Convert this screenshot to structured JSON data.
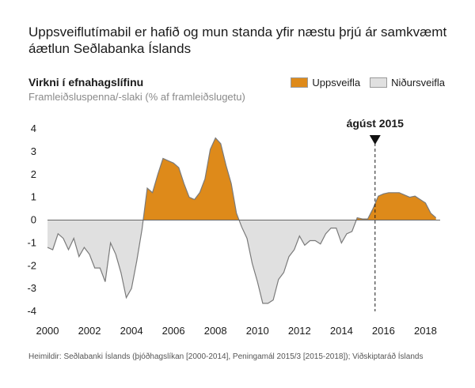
{
  "headline": "Uppsveiflutímabil er hafið og mun standa yfir næstu þrjú ár samkvæmt áætlun Seðlabanka Íslands",
  "source": "Heimildir: Seðlabanki Íslands (þjóðhagslíkan [2000-2014], Peningamál 2015/3 [2015-2018]); Viðskiptaráð Íslands",
  "colors": {
    "upswing": "#de8a1a",
    "downswing": "#e0e0e0",
    "line": "#7a7a7a"
  },
  "chart_data": {
    "type": "area",
    "title": "Virkni í efnahagslífinu",
    "subtitle": "Framleiðsluspenna/-slaki (% af framleiðslugetu)",
    "legend": [
      {
        "label": "Uppsveifla",
        "color": "#de8a1a"
      },
      {
        "label": "Niðursveifla",
        "color": "#e0e0e0"
      }
    ],
    "legend_position": "top-right",
    "xlim": [
      2000,
      2018.7
    ],
    "ylim": [
      -4,
      4
    ],
    "xticks": [
      "2000",
      "2002",
      "2004",
      "2006",
      "2008",
      "2010",
      "2012",
      "2014",
      "2016",
      "2018"
    ],
    "yticks": [
      "4",
      "3",
      "2",
      "1",
      "0",
      "-1",
      "-2",
      "-3",
      "-4"
    ],
    "annotation": {
      "label": "ágúst 2015",
      "x": 2015.6
    },
    "series": [
      {
        "x": [
          2000,
          2000.25,
          2000.5,
          2000.75,
          2001,
          2001.25,
          2001.5,
          2001.75,
          2002,
          2002.25,
          2002.5,
          2002.75,
          2003,
          2003.25,
          2003.5,
          2003.75,
          2004,
          2004.25,
          2004.5,
          2004.75,
          2005,
          2005.25,
          2005.5,
          2005.75,
          2006,
          2006.25,
          2006.5,
          2006.75,
          2007,
          2007.25,
          2007.5,
          2007.75,
          2008,
          2008.25,
          2008.5,
          2008.75,
          2009,
          2009.25,
          2009.5,
          2009.75,
          2010,
          2010.25,
          2010.5,
          2010.75,
          2011,
          2011.25,
          2011.5,
          2011.75,
          2012,
          2012.25,
          2012.5,
          2012.75,
          2013,
          2013.25,
          2013.5,
          2013.75,
          2014,
          2014.25,
          2014.5,
          2014.75,
          2015,
          2015.25,
          2015.5,
          2015.75,
          2016,
          2016.25,
          2016.5,
          2016.75,
          2017,
          2017.25,
          2017.5,
          2017.75,
          2018,
          2018.25,
          2018.5
        ],
        "y": [
          -1.2,
          -1.3,
          -0.6,
          -0.8,
          -1.3,
          -0.8,
          -1.6,
          -1.2,
          -1.5,
          -2.1,
          -2.1,
          -2.7,
          -1.0,
          -1.5,
          -2.3,
          -3.4,
          -3.0,
          -1.8,
          -0.4,
          1.4,
          1.2,
          2.0,
          2.7,
          2.6,
          2.5,
          2.3,
          1.6,
          1.0,
          0.9,
          1.2,
          1.8,
          3.1,
          3.6,
          3.35,
          2.4,
          1.6,
          0.3,
          -0.3,
          -0.8,
          -1.9,
          -2.7,
          -3.65,
          -3.65,
          -3.5,
          -2.6,
          -2.3,
          -1.6,
          -1.3,
          -0.7,
          -1.1,
          -0.9,
          -0.9,
          -1.05,
          -0.6,
          -0.35,
          -0.35,
          -1.0,
          -0.6,
          -0.5,
          0.1,
          0.05,
          0.05,
          0.5,
          1.05,
          1.15,
          1.2,
          1.2,
          1.2,
          1.1,
          1.0,
          1.05,
          0.9,
          0.75,
          0.3,
          0.1
        ]
      }
    ]
  }
}
